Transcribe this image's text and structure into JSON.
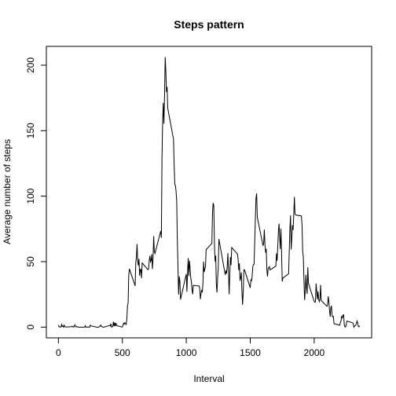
{
  "chart_data": {
    "type": "line",
    "title": "Steps pattern",
    "x_label": "Interval",
    "y_label": "Average number of steps",
    "color": "#000000",
    "xlim": [
      -94.2,
      2449.2
    ],
    "ylim": [
      -8.2,
      214.4
    ],
    "xticks": [
      0,
      500,
      1000,
      1500,
      2000
    ],
    "yticks": [
      0,
      50,
      100,
      150,
      200
    ],
    "x": [
      0,
      5,
      10,
      15,
      20,
      25,
      30,
      35,
      40,
      45,
      50,
      55,
      100,
      105,
      110,
      115,
      120,
      125,
      130,
      135,
      140,
      145,
      150,
      155,
      200,
      205,
      210,
      215,
      220,
      225,
      230,
      235,
      240,
      245,
      250,
      255,
      300,
      305,
      310,
      315,
      320,
      325,
      330,
      335,
      340,
      345,
      350,
      355,
      400,
      405,
      410,
      415,
      420,
      425,
      430,
      435,
      440,
      445,
      450,
      455,
      500,
      505,
      510,
      515,
      520,
      525,
      530,
      535,
      540,
      545,
      550,
      555,
      600,
      605,
      610,
      615,
      620,
      625,
      630,
      635,
      640,
      645,
      650,
      655,
      700,
      705,
      710,
      715,
      720,
      725,
      730,
      735,
      740,
      745,
      750,
      755,
      800,
      805,
      810,
      815,
      820,
      825,
      830,
      835,
      840,
      845,
      850,
      855,
      900,
      905,
      910,
      915,
      920,
      925,
      930,
      935,
      940,
      945,
      950,
      955,
      1000,
      1005,
      1010,
      1015,
      1020,
      1025,
      1030,
      1035,
      1040,
      1045,
      1050,
      1055,
      1100,
      1105,
      1110,
      1115,
      1120,
      1125,
      1130,
      1135,
      1140,
      1145,
      1150,
      1155,
      1200,
      1205,
      1210,
      1215,
      1220,
      1225,
      1230,
      1235,
      1240,
      1245,
      1250,
      1255,
      1300,
      1305,
      1310,
      1315,
      1320,
      1325,
      1330,
      1335,
      1340,
      1345,
      1350,
      1355,
      1400,
      1405,
      1410,
      1415,
      1420,
      1425,
      1430,
      1435,
      1440,
      1445,
      1450,
      1455,
      1500,
      1505,
      1510,
      1515,
      1520,
      1525,
      1530,
      1535,
      1540,
      1545,
      1550,
      1555,
      1600,
      1605,
      1610,
      1615,
      1620,
      1625,
      1630,
      1635,
      1640,
      1645,
      1650,
      1655,
      1700,
      1705,
      1710,
      1715,
      1720,
      1725,
      1730,
      1735,
      1740,
      1745,
      1750,
      1755,
      1800,
      1805,
      1810,
      1815,
      1820,
      1825,
      1830,
      1835,
      1840,
      1845,
      1850,
      1855,
      1900,
      1905,
      1910,
      1915,
      1920,
      1925,
      1930,
      1935,
      1940,
      1945,
      1950,
      1955,
      2000,
      2005,
      2010,
      2015,
      2020,
      2025,
      2030,
      2035,
      2040,
      2045,
      2050,
      2055,
      2100,
      2105,
      2110,
      2115,
      2120,
      2125,
      2130,
      2135,
      2140,
      2145,
      2150,
      2155,
      2200,
      2205,
      2210,
      2215,
      2220,
      2225,
      2230,
      2235,
      2240,
      2245,
      2250,
      2255,
      2300,
      2305,
      2310,
      2315,
      2320,
      2325,
      2330,
      2335,
      2340,
      2345,
      2350,
      2355
    ],
    "values": [
      1.7,
      0.3,
      0.1,
      0.2,
      0.1,
      2.1,
      0.5,
      0.9,
      0,
      1.5,
      0.3,
      0.1,
      0.3,
      0.7,
      0.2,
      0.3,
      0,
      1.1,
      1.8,
      0.2,
      0.2,
      0.4,
      0.3,
      0,
      0,
      0,
      1.1,
      0,
      0,
      0.1,
      0,
      0.2,
      0,
      0,
      1.5,
      0.9,
      0,
      0,
      0,
      0,
      0.2,
      0.6,
      1.6,
      0.6,
      0.5,
      0.1,
      0,
      0,
      1.2,
      0.9,
      2.6,
      0,
      0.3,
      0.4,
      4.1,
      0.7,
      3.5,
      0.8,
      3.1,
      1.1,
      0,
      1.6,
      3,
      2.2,
      3.3,
      3,
      2.1,
      6.1,
      16,
      18.3,
      39.5,
      44.5,
      31.5,
      49.3,
      53.8,
      63.5,
      50,
      47.1,
      52.2,
      39.3,
      44,
      44.2,
      37.4,
      49,
      43.8,
      44.4,
      50.5,
      54.5,
      49.9,
      51,
      55.7,
      44.3,
      52.3,
      69.5,
      57.8,
      56.2,
      73.4,
      68.2,
      129.4,
      157.5,
      171.2,
      155.4,
      177.3,
      206.2,
      195.9,
      179.6,
      183.4,
      167,
      143.5,
      124,
      109.1,
      108.1,
      103.7,
      96,
      66.2,
      45.2,
      24.8,
      38.8,
      35,
      21.1,
      40.6,
      27,
      42.4,
      52.7,
      38.9,
      50.8,
      44.3,
      37.4,
      34.7,
      28.3,
      25.1,
      31.9,
      31.4,
      29.7,
      21.3,
      25.5,
      28.4,
      26.5,
      33.4,
      50,
      42,
      44.6,
      46,
      59.2,
      63.9,
      87.7,
      94.8,
      92.8,
      63.4,
      50.2,
      54.5,
      32.4,
      26.5,
      37.7,
      45.1,
      67.3,
      42.3,
      39.9,
      43.3,
      41,
      46.2,
      56.4,
      42.8,
      25.1,
      40,
      53.5,
      47.3,
      60.8,
      55.8,
      52,
      43.6,
      48.7,
      35.5,
      37.5,
      41.8,
      27.5,
      17.1,
      26.1,
      43.6,
      43.8,
      30,
      36.1,
      35.5,
      38.8,
      46,
      47.8,
      48.1,
      65.3,
      82.9,
      98.7,
      102.1,
      84,
      62.1,
      64.1,
      74.5,
      63.2,
      56.9,
      59.8,
      43.9,
      38.6,
      44.7,
      45.5,
      46.2,
      43.7,
      46.6,
      56.3,
      50.7,
      61.2,
      72.7,
      78.9,
      68.9,
      59.7,
      75.1,
      56.5,
      34.8,
      37.5,
      40.7,
      58,
      74.7,
      85.3,
      59.3,
      67.8,
      77.7,
      74.2,
      85.3,
      99.5,
      86.6,
      85.6,
      84.9,
      77.8,
      58,
      53.4,
      36.3,
      20.7,
      27.4,
      40,
      30.2,
      25.5,
      45.7,
      33.5,
      19.6,
      19,
      19.3,
      33.3,
      26.8,
      21.2,
      27.3,
      21.3,
      19.5,
      21.3,
      32.3,
      20.2,
      15.9,
      17.2,
      23.5,
      19.2,
      12.5,
      8,
      14.7,
      16.3,
      8.7,
      7.8,
      8.1,
      2.6,
      1.5,
      3.7,
      4.8,
      8.5,
      7.1,
      8.7,
      9.8,
      2.2,
      0.3,
      0.1,
      1.6,
      4.6,
      3.3,
      2.8,
      0,
      0.8,
      1,
      1.6,
      2.6,
      4.7,
      3.3,
      0.6,
      0.2,
      1.1
    ]
  }
}
